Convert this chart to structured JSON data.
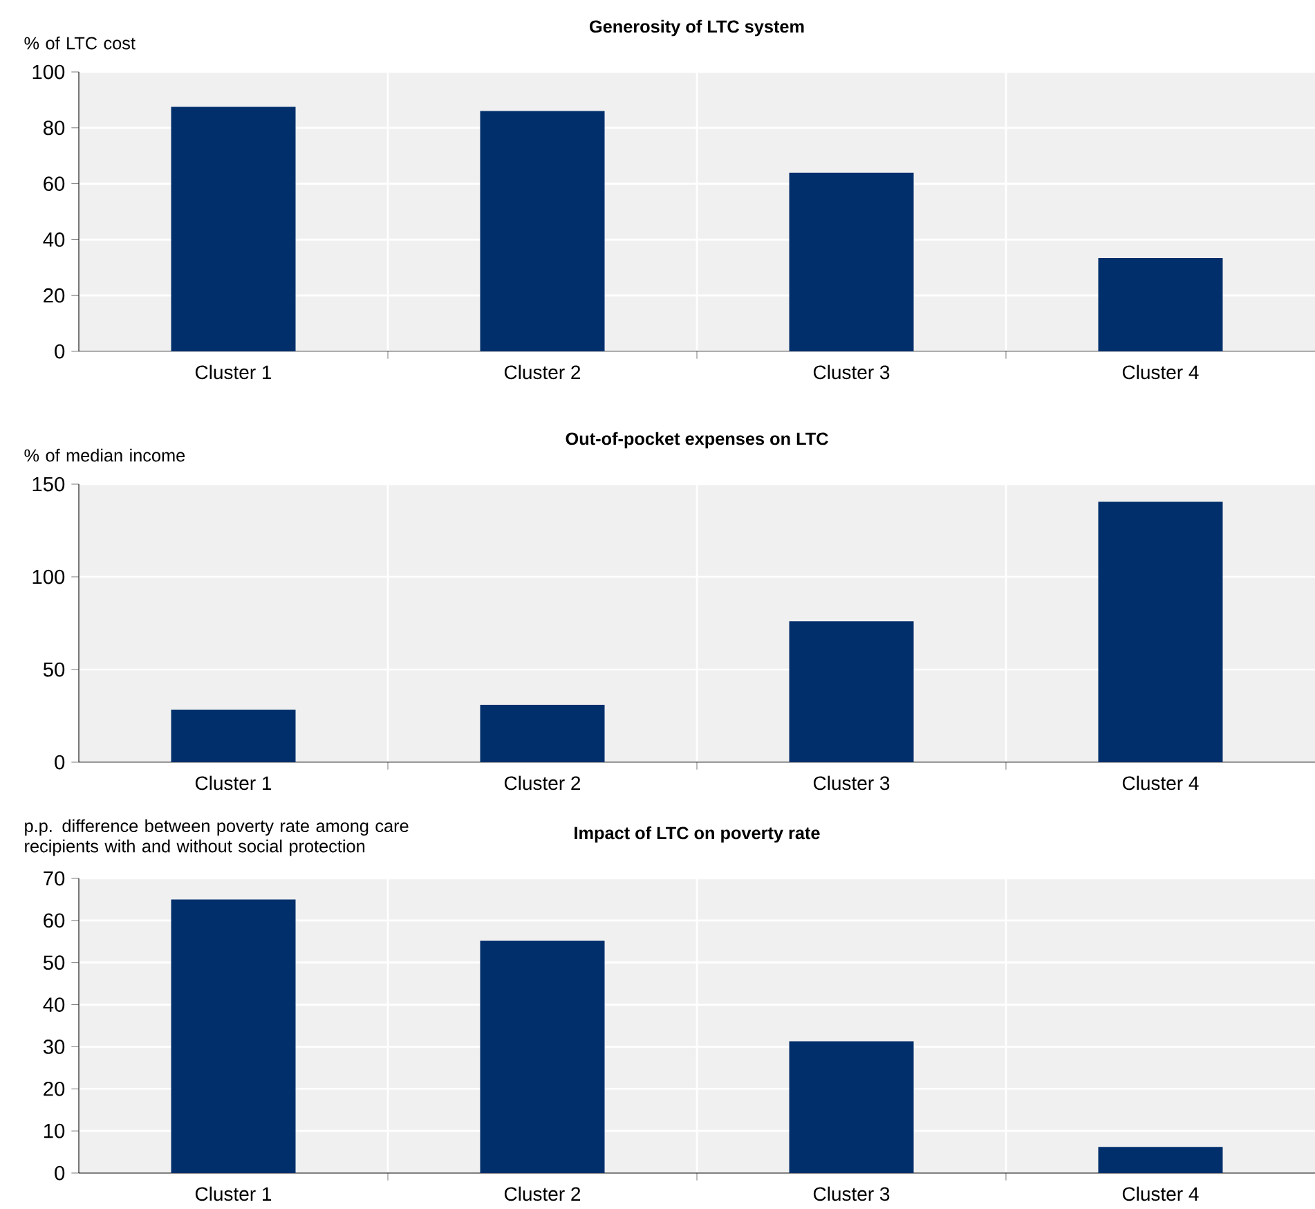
{
  "chart_data": [
    {
      "type": "bar",
      "title": "Generosity of LTC system",
      "ylabel": "% of LTC cost",
      "categories": [
        "Cluster 1",
        "Cluster 2",
        "Cluster 3",
        "Cluster 4"
      ],
      "values": [
        87.5,
        86,
        63.9,
        33.4
      ],
      "color": "#002f6c",
      "ylim": [
        0,
        100
      ],
      "yticks": [
        0,
        20,
        40,
        60,
        80,
        100
      ],
      "grid": true
    },
    {
      "type": "bar",
      "title": "Out-of-pocket expenses on LTC",
      "ylabel": "% of median income",
      "categories": [
        "Cluster 1",
        "Cluster 2",
        "Cluster 3",
        "Cluster 4"
      ],
      "values": [
        28.4,
        31,
        76,
        140.5
      ],
      "color": "#002f6c",
      "ylim": [
        0,
        150
      ],
      "yticks": [
        0,
        50,
        100,
        150
      ],
      "grid": true
    },
    {
      "type": "bar",
      "title": "Impact of LTC on poverty rate",
      "ylabel": "p.p. difference between poverty rate among care recipients with and without social protection",
      "categories": [
        "Cluster 1",
        "Cluster 2",
        "Cluster 3",
        "Cluster 4"
      ],
      "values": [
        65,
        55.2,
        31.3,
        6.2
      ],
      "color": "#002f6c",
      "ylim": [
        0,
        70
      ],
      "yticks": [
        0,
        10,
        20,
        30,
        40,
        50,
        60,
        70
      ],
      "grid": true
    }
  ]
}
